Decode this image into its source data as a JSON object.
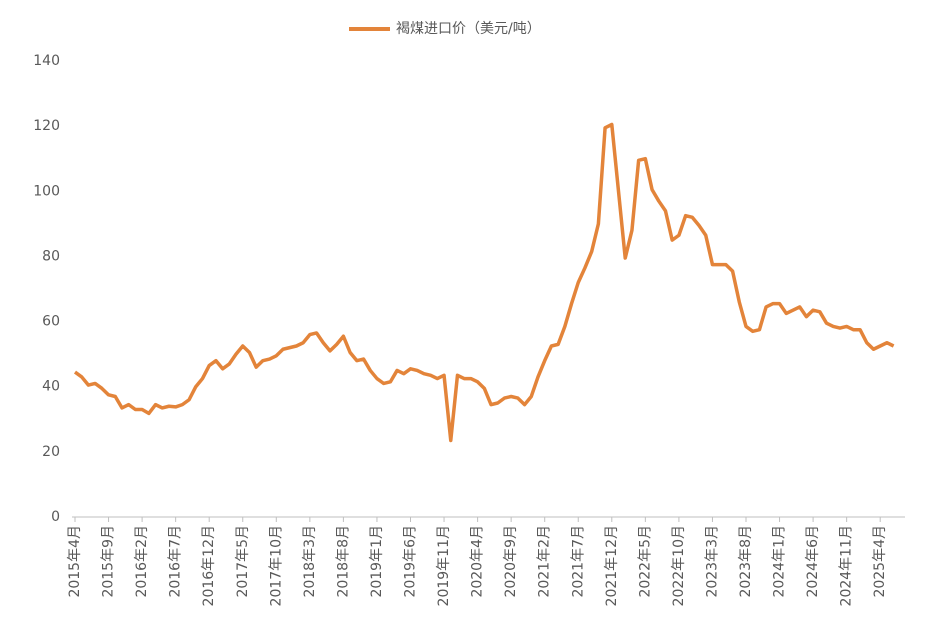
{
  "chart_data": {
    "type": "line",
    "categories": [
      "2015年4月",
      null,
      null,
      null,
      null,
      "2015年9月",
      null,
      null,
      null,
      null,
      "2016年2月",
      null,
      null,
      null,
      null,
      "2016年7月",
      null,
      null,
      null,
      null,
      "2016年12月",
      null,
      null,
      null,
      null,
      "2017年5月",
      null,
      null,
      null,
      null,
      "2017年10月",
      null,
      null,
      null,
      null,
      "2018年3月",
      null,
      null,
      null,
      null,
      "2018年8月",
      null,
      null,
      null,
      null,
      "2019年1月",
      null,
      null,
      null,
      null,
      "2019年6月",
      null,
      null,
      null,
      null,
      "2019年11月",
      null,
      null,
      null,
      null,
      "2020年4月",
      null,
      null,
      null,
      null,
      "2020年9月",
      null,
      null,
      null,
      null,
      "2021年2月",
      null,
      null,
      null,
      null,
      "2021年7月",
      null,
      null,
      null,
      null,
      "2021年12月",
      null,
      null,
      null,
      null,
      "2022年5月",
      null,
      null,
      null,
      null,
      "2022年10月",
      null,
      null,
      null,
      null,
      "2023年3月",
      null,
      null,
      null,
      null,
      "2023年8月",
      null,
      null,
      null,
      null,
      "2024年1月",
      null,
      null,
      null,
      null,
      "2024年6月",
      null,
      null,
      null,
      null,
      "2024年11月",
      null,
      null,
      null,
      null,
      "2025年4月",
      null,
      null
    ],
    "series": [
      {
        "name": "褐煤进口价（美元/吨）",
        "color": "#E3843A",
        "values": [
          44.5,
          43,
          40.5,
          41,
          39.5,
          37.5,
          37,
          33.5,
          34.5,
          33,
          33,
          31.8,
          34.5,
          33.5,
          34,
          33.8,
          34.5,
          36,
          40,
          42.5,
          46.5,
          48,
          45.5,
          47,
          50,
          52.5,
          50.5,
          46,
          48,
          48.5,
          49.5,
          51.5,
          52,
          52.5,
          53.5,
          56,
          56.5,
          53.5,
          51,
          53,
          55.5,
          50.5,
          48,
          48.5,
          45,
          42.5,
          41,
          41.5,
          45,
          44,
          45.5,
          45,
          44,
          43.5,
          42.5,
          43.5,
          23.5,
          43.5,
          42.5,
          42.5,
          41.5,
          39.5,
          34.5,
          35,
          36.5,
          37,
          36.5,
          34.5,
          37,
          43,
          48,
          52.5,
          53,
          58.5,
          65.5,
          72,
          76.5,
          81.5,
          90,
          119.5,
          120.5,
          100,
          79.5,
          88,
          109.5,
          110,
          100.5,
          97,
          94,
          85,
          86.5,
          92.5,
          92,
          89.5,
          86.5,
          77.5,
          77.5,
          77.5,
          75.5,
          66,
          58.5,
          57,
          57.5,
          64.5,
          65.5,
          65.5,
          62.5,
          63.5,
          64.5,
          61.5,
          63.5,
          63,
          59.5,
          58.5,
          58,
          58.5,
          57.5,
          57.5,
          53.5,
          51.5,
          52.5,
          53.5,
          52.5
        ]
      }
    ],
    "ylim": [
      0,
      140
    ],
    "yticks": [
      0,
      20,
      40,
      60,
      80,
      100,
      120,
      140
    ],
    "grid": false,
    "legend": "top"
  }
}
